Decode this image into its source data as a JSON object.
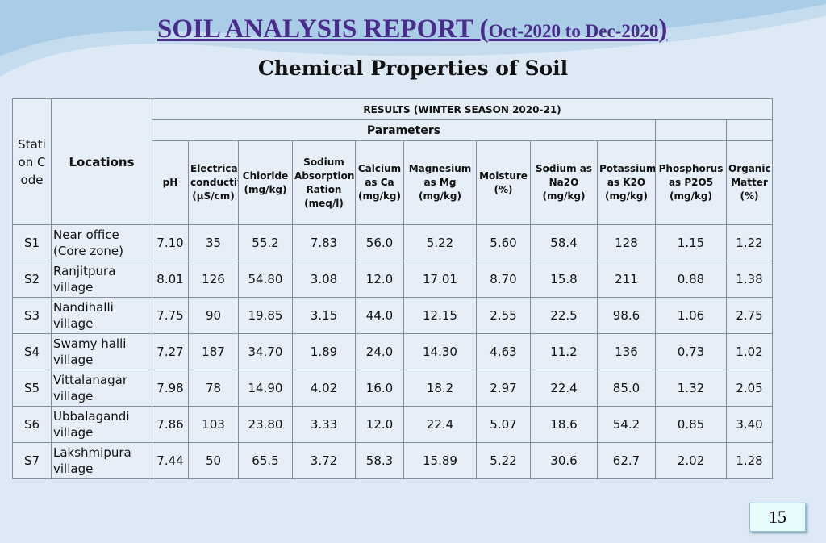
{
  "title": {
    "main": "SOIL ANALYSIS REPORT (",
    "period": "Oct-2020 to Dec-2020",
    "close": ")"
  },
  "subtitle": "Chemical Properties of Soil",
  "table": {
    "station_header": "Station Code",
    "location_header": "Locations",
    "results_header": "RESULTS (WINTER SEASON 2020-21)",
    "parameters_header": "Parameters",
    "columns": [
      "pH",
      "Electrical conductivity (µS/cm)",
      "Chloride (mg/kg)",
      "Sodium Absorption Ration (meq/l)",
      "Calcium as Ca (mg/kg)",
      "Magnesium as Mg (mg/kg)",
      "Moisture (%)",
      "Sodium  as Na2O (mg/kg)",
      "Potassium as K2O (mg/kg)",
      "Phosphorus as P2O5 (mg/kg)",
      "Organic Matter (%)"
    ],
    "rows": [
      [
        "S1",
        "Near office (Core zone)",
        "7.10",
        "35",
        "55.2",
        "7.83",
        "56.0",
        "5.22",
        "5.60",
        "58.4",
        "128",
        "1.15",
        "1.22"
      ],
      [
        "S2",
        "Ranjitpura village",
        "8.01",
        "126",
        "54.80",
        "3.08",
        "12.0",
        "17.01",
        "8.70",
        "15.8",
        "211",
        "0.88",
        "1.38"
      ],
      [
        "S3",
        "Nandihalli village",
        "7.75",
        "90",
        "19.85",
        "3.15",
        "44.0",
        "12.15",
        "2.55",
        "22.5",
        "98.6",
        "1.06",
        "2.75"
      ],
      [
        "S4",
        "Swamy halli village",
        "7.27",
        "187",
        "34.70",
        "1.89",
        "24.0",
        "14.30",
        "4.63",
        "11.2",
        "136",
        "0.73",
        "1.02"
      ],
      [
        "S5",
        "Vittalanagar village",
        "7.98",
        "78",
        "14.90",
        "4.02",
        "16.0",
        "18.2",
        "2.97",
        "22.4",
        "85.0",
        "1.32",
        "2.05"
      ],
      [
        "S6",
        "Ubbalagandi village",
        "7.86",
        "103",
        "23.80",
        "3.33",
        "12.0",
        "22.4",
        "5.07",
        "18.6",
        "54.2",
        "0.85",
        "3.40"
      ],
      [
        "S7",
        "Lakshmipura village",
        "7.44",
        "50",
        "65.5",
        "3.72",
        "58.3",
        "15.89",
        "5.22",
        "30.6",
        "62.7",
        "2.02",
        "1.28"
      ]
    ]
  },
  "page_number": "15"
}
